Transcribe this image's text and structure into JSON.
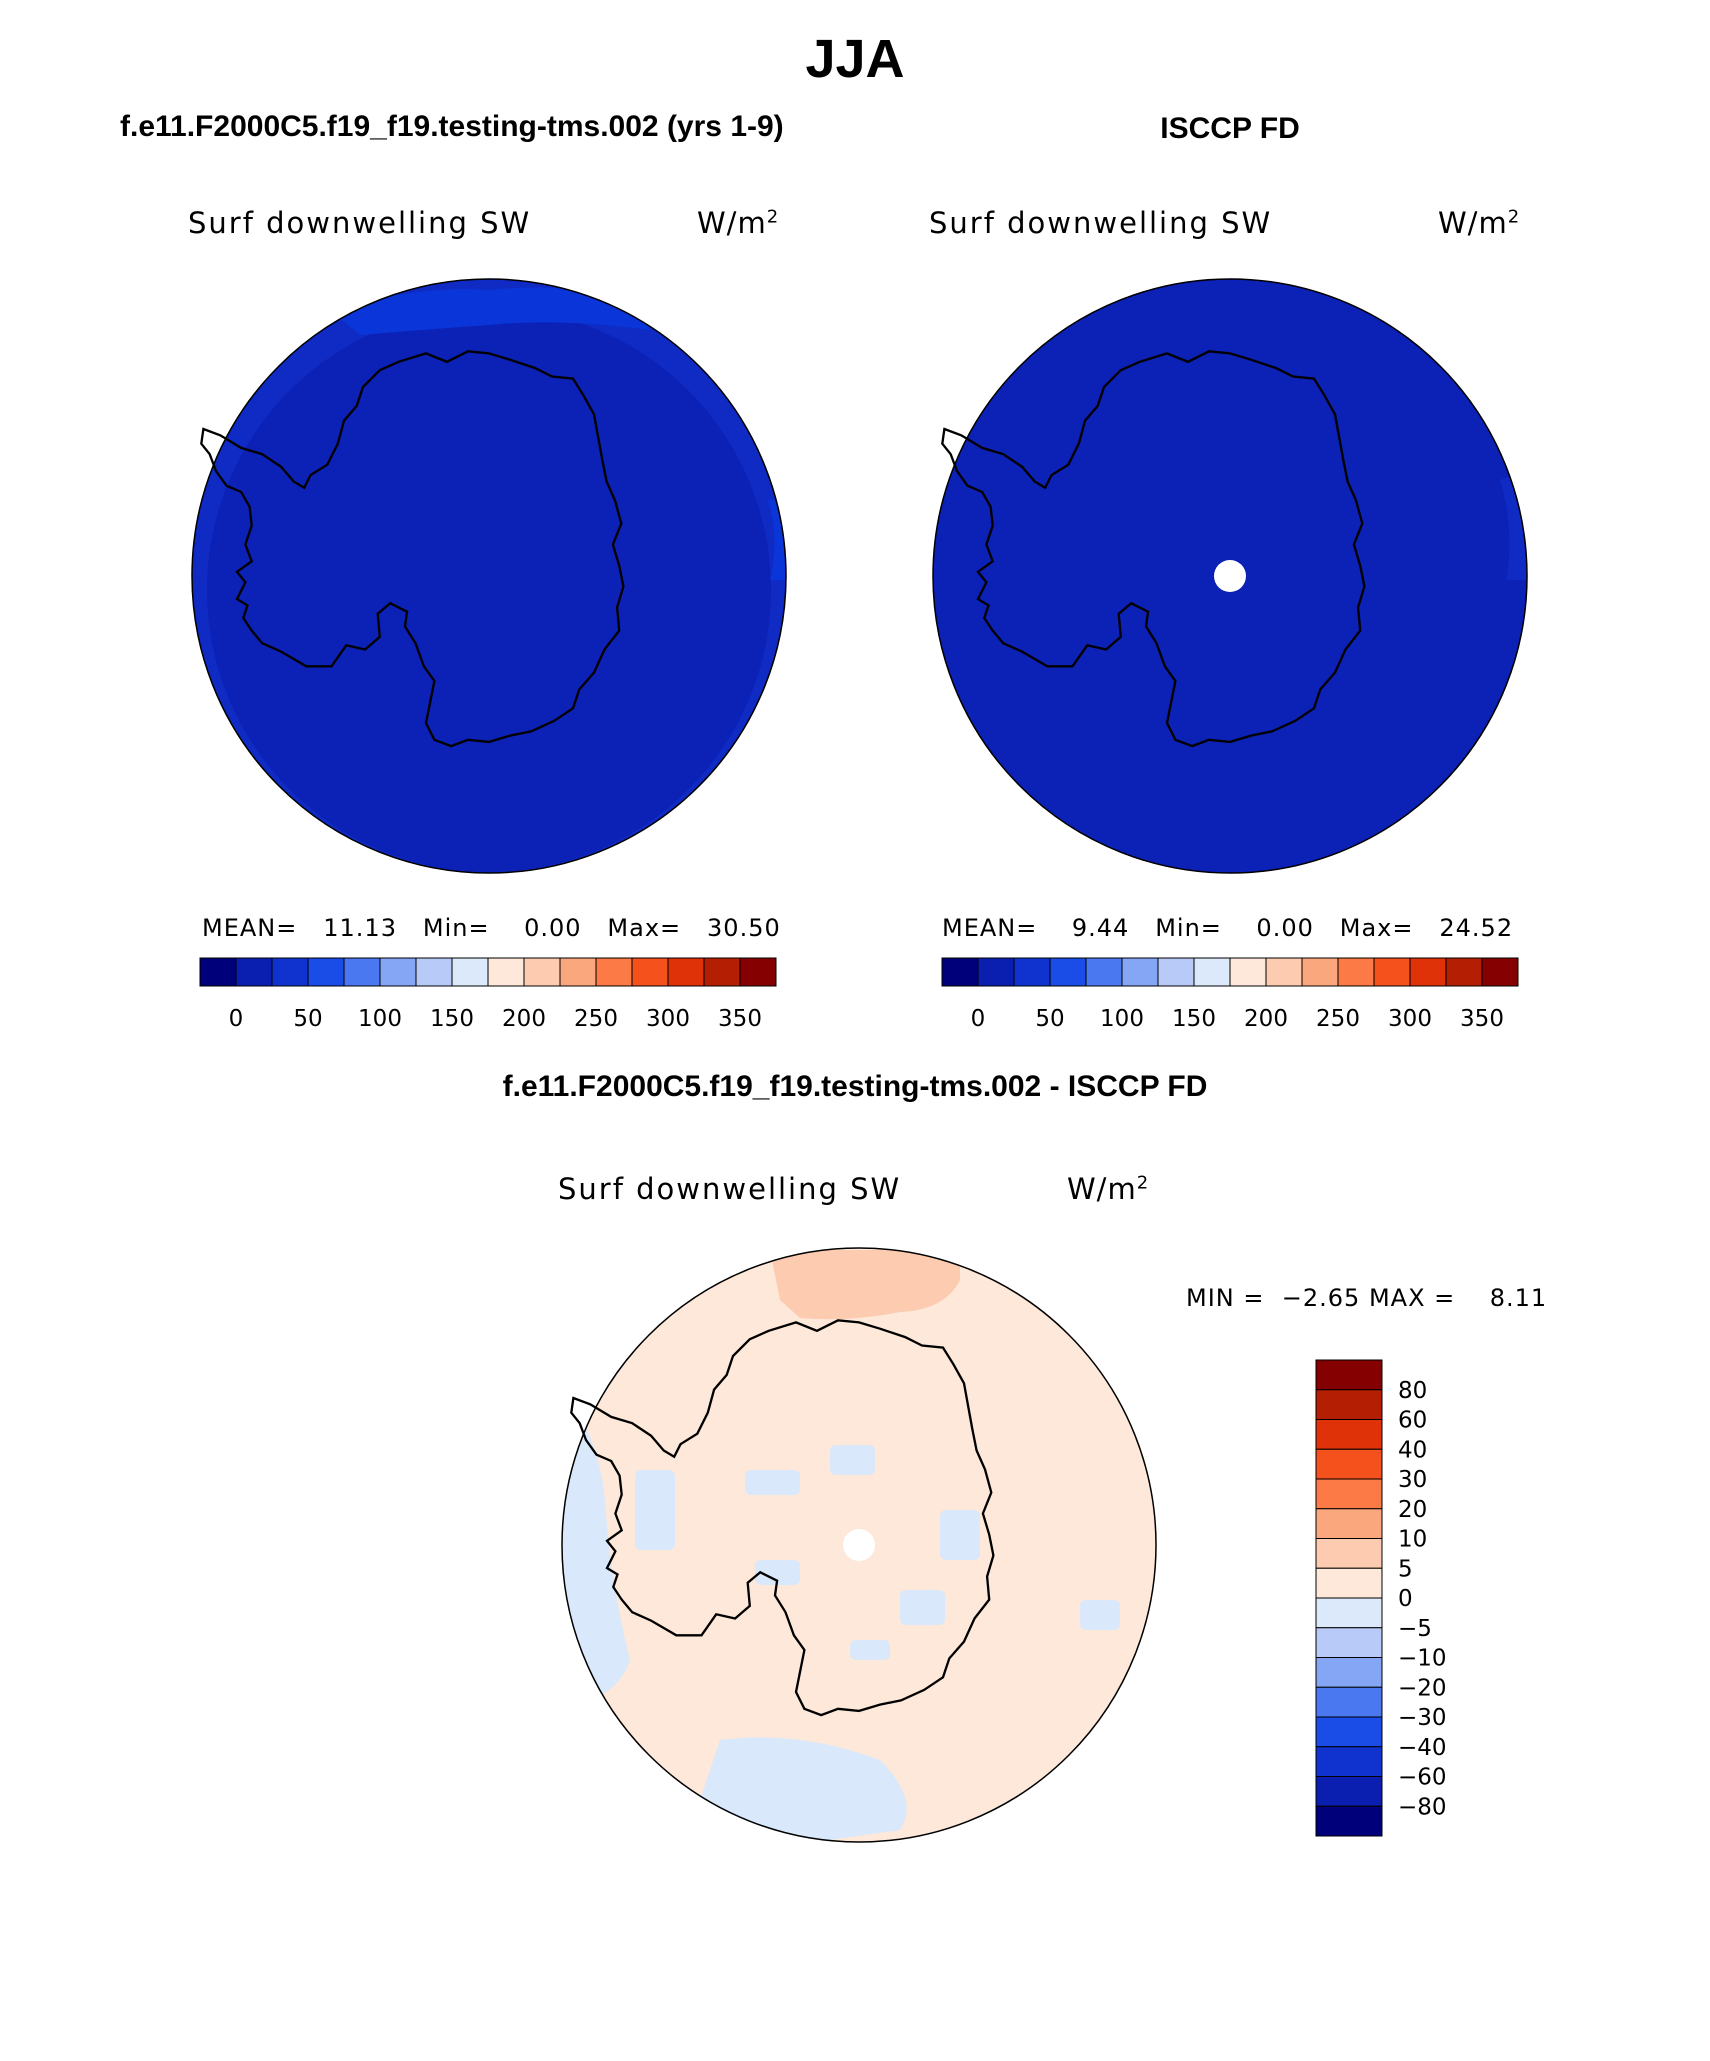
{
  "figure": {
    "title": "JJA"
  },
  "panel_model": {
    "title": "f.e11.F2000C5.f19_f19.testing-tms.002 (yrs 1-9)",
    "variable": "Surf downwelling SW",
    "units": "W/m",
    "units_exp": "2",
    "mean_label": "MEAN=",
    "mean_value": "11.13",
    "min_label": "Min=",
    "min_value": "0.00",
    "max_label": "Max=",
    "max_value": "30.50"
  },
  "panel_obs": {
    "title": "ISCCP FD",
    "variable": "Surf downwelling SW",
    "units": "W/m",
    "units_exp": "2",
    "mean_label": "MEAN=",
    "mean_value": "9.44",
    "min_label": "Min=",
    "min_value": "0.00",
    "max_label": "Max=",
    "max_value": "24.52"
  },
  "panel_diff": {
    "title": "f.e11.F2000C5.f19_f19.testing-tms.002 - ISCCP FD",
    "variable": "Surf downwelling SW",
    "units": "W/m",
    "units_exp": "2",
    "min_label": "MIN =",
    "min_value": "−2.65",
    "max_label": "MAX =",
    "max_value": "8.11"
  },
  "colorbar_abs": {
    "colors": [
      "#00007a",
      "#0a1fb0",
      "#1033d0",
      "#1a4de8",
      "#4a78f0",
      "#85a5f5",
      "#b7caf8",
      "#dce9fb",
      "#fde8d9",
      "#fccbb0",
      "#fba77e",
      "#fb7a46",
      "#f4511c",
      "#df3208",
      "#b41e02",
      "#850000"
    ],
    "ticks": [
      "0",
      "50",
      "100",
      "150",
      "200",
      "250",
      "300",
      "350"
    ]
  },
  "colorbar_diff": {
    "colors": [
      "#850000",
      "#b41e02",
      "#df3208",
      "#f4511c",
      "#fb7a46",
      "#fba77e",
      "#fccbb0",
      "#fde8d9",
      "#dce9fb",
      "#b7caf8",
      "#85a5f5",
      "#4a78f0",
      "#1a4de8",
      "#1033d0",
      "#0a1fb0",
      "#00007a"
    ],
    "ticks": [
      "80",
      "60",
      "40",
      "30",
      "20",
      "10",
      "5",
      "0",
      "−5",
      "−10",
      "−20",
      "−30",
      "−40",
      "−60",
      "−80"
    ]
  },
  "map_colors": {
    "model_fill": "#0c21b5",
    "model_edge_band": "#0f2bc4",
    "model_top_band": "#0a35d8",
    "obs_fill": "#0c21b5",
    "diff_fill": "#fde8d9",
    "diff_pos_patch": "#fccbb0",
    "diff_neg_patch": "#d9e8fb",
    "missing": "#ffffff",
    "coastline": "#000000"
  }
}
